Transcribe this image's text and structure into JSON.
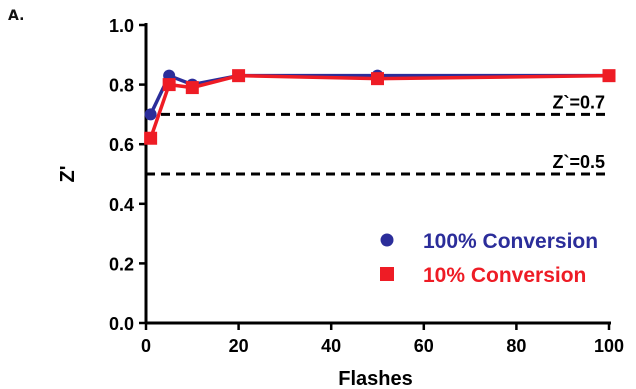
{
  "panel_label": "A.",
  "chart_data": {
    "type": "line",
    "title": "",
    "xlabel": "Flashes",
    "ylabel": "Z'",
    "xlim": [
      0,
      100
    ],
    "ylim": [
      0,
      1.0
    ],
    "x_ticks": [
      0,
      20,
      40,
      60,
      80,
      100
    ],
    "y_ticks": [
      0.0,
      0.2,
      0.4,
      0.6,
      0.8,
      1.0
    ],
    "x_tick_labels": [
      "0",
      "20",
      "40",
      "60",
      "80",
      "100"
    ],
    "y_tick_labels": [
      "0.0",
      "0.2",
      "0.4",
      "0.6",
      "0.8",
      "1.0"
    ],
    "grid": false,
    "legend_position": "bottom-right",
    "series": [
      {
        "name": "100% Conversion",
        "color": "#2b2d9a",
        "marker": "circle",
        "x": [
          1,
          5,
          10,
          20,
          50,
          100
        ],
        "y": [
          0.7,
          0.83,
          0.8,
          0.83,
          0.83,
          0.83
        ]
      },
      {
        "name": "10% Conversion",
        "color": "#ee1c25",
        "marker": "square",
        "x": [
          1,
          5,
          10,
          20,
          50,
          100
        ],
        "y": [
          0.62,
          0.8,
          0.79,
          0.83,
          0.82,
          0.83
        ]
      }
    ],
    "reference_lines": [
      {
        "y": 0.7,
        "label": "Z`=0.7"
      },
      {
        "y": 0.5,
        "label": "Z`=0.5"
      }
    ]
  }
}
